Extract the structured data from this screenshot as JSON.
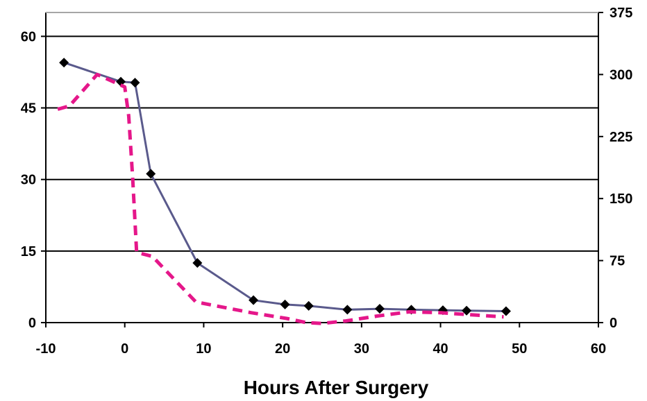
{
  "chart_data": {
    "type": "line",
    "xlabel": "Hours After Surgery",
    "xlim": [
      -10,
      60
    ],
    "ylim_left": [
      0,
      65
    ],
    "ylim_right": [
      0,
      375
    ],
    "x_ticks": [
      -10,
      0,
      10,
      20,
      30,
      40,
      50,
      60
    ],
    "y_left_ticks": [
      0,
      15,
      30,
      45,
      60
    ],
    "y_right_ticks": [
      0,
      75,
      150,
      225,
      300,
      375
    ],
    "grid": true,
    "series": [
      {
        "axis": "left",
        "color": "#5a5a8c",
        "style": "solid",
        "marker": "diamond",
        "x": [
          -7.7,
          -0.5,
          1.3,
          3.3,
          9.2,
          16.3,
          20.3,
          23.3,
          28.2,
          32.3,
          36.3,
          40.3,
          43.3,
          48.3
        ],
        "y": [
          54.5,
          50.5,
          50.3,
          31.2,
          12.5,
          4.7,
          3.8,
          3.5,
          2.7,
          2.9,
          2.7,
          2.6,
          2.5,
          2.4
        ]
      },
      {
        "axis": "right",
        "color": "#e5178a",
        "style": "dashed",
        "marker": "none",
        "x": [
          -8.5,
          -7.0,
          -3.5,
          0.0,
          0.5,
          1.0,
          1.5,
          3.5,
          9.0,
          16.0,
          20.5,
          23.0,
          25.0,
          28.0,
          32.0,
          36.0,
          40.0,
          43.0,
          48.0
        ],
        "y": [
          258,
          262,
          300,
          285,
          250,
          175,
          85,
          80,
          25,
          12,
          5,
          0,
          -1,
          2,
          8,
          13,
          12,
          10,
          7
        ]
      }
    ]
  }
}
